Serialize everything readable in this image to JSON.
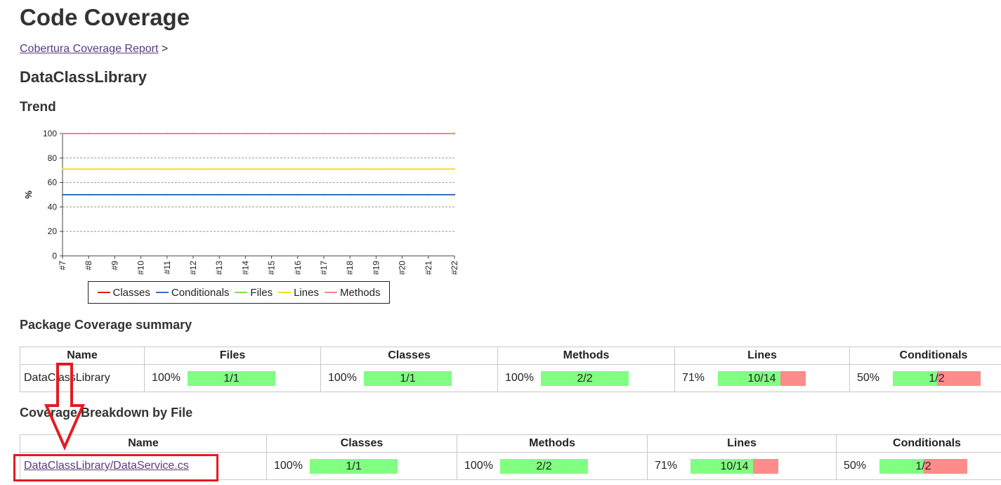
{
  "page": {
    "title": "Code Coverage",
    "breadcrumb_link": "Cobertura Coverage Report",
    "breadcrumb_sep": ">",
    "package_name": "DataClassLibrary",
    "trend_heading": "Trend",
    "package_summary_heading": "Package Coverage summary",
    "breakdown_heading": "Coverage Breakdown by File"
  },
  "chart_data": {
    "type": "line",
    "title": "",
    "xlabel": "",
    "ylabel": "%",
    "ylim": [
      0,
      100
    ],
    "yticks": [
      "0",
      "20",
      "40",
      "60",
      "80",
      "100"
    ],
    "x": [
      "#7",
      "#8",
      "#9",
      "#10",
      "#11",
      "#12",
      "#13",
      "#14",
      "#15",
      "#16",
      "#17",
      "#18",
      "#19",
      "#20",
      "#21",
      "#22"
    ],
    "grid": true,
    "legend_position": "bottom",
    "series": [
      {
        "name": "Classes",
        "color": "#e31b1b",
        "values": [
          100,
          100,
          100,
          100,
          100,
          100,
          100,
          100,
          100,
          100,
          100,
          100,
          100,
          100,
          100,
          100
        ]
      },
      {
        "name": "Conditionals",
        "color": "#3b6fbf",
        "values": [
          50,
          50,
          50,
          50,
          50,
          50,
          50,
          50,
          50,
          50,
          50,
          50,
          50,
          50,
          50,
          50
        ]
      },
      {
        "name": "Files",
        "color": "#7fe05a",
        "values": [
          100,
          100,
          100,
          100,
          100,
          100,
          100,
          100,
          100,
          100,
          100,
          100,
          100,
          100,
          100,
          100
        ]
      },
      {
        "name": "Lines",
        "color": "#f2df2a",
        "values": [
          71,
          71,
          71,
          71,
          71,
          71,
          71,
          71,
          71,
          71,
          71,
          71,
          71,
          71,
          71,
          71
        ]
      },
      {
        "name": "Methods",
        "color": "#f08a80",
        "values": [
          100,
          100,
          100,
          100,
          100,
          100,
          100,
          100,
          100,
          100,
          100,
          100,
          100,
          100,
          100,
          100
        ]
      }
    ]
  },
  "package_table": {
    "headers": [
      "Name",
      "Files",
      "Classes",
      "Methods",
      "Lines",
      "Conditionals"
    ],
    "row": {
      "name": "DataClassLibrary",
      "files": {
        "pct": "100%",
        "label": "1/1",
        "fraction": 1.0
      },
      "classes": {
        "pct": "100%",
        "label": "1/1",
        "fraction": 1.0
      },
      "methods": {
        "pct": "100%",
        "label": "2/2",
        "fraction": 1.0
      },
      "lines": {
        "pct": "71%",
        "label": "10/14",
        "fraction": 0.71
      },
      "conditionals": {
        "pct": "50%",
        "label": "1/2",
        "fraction": 0.5
      }
    }
  },
  "file_table": {
    "headers": [
      "Name",
      "Classes",
      "Methods",
      "Lines",
      "Conditionals"
    ],
    "row": {
      "name": "DataClassLibrary/DataService.cs",
      "classes": {
        "pct": "100%",
        "label": "1/1",
        "fraction": 1.0
      },
      "methods": {
        "pct": "100%",
        "label": "2/2",
        "fraction": 1.0
      },
      "lines": {
        "pct": "71%",
        "label": "10/14",
        "fraction": 0.71
      },
      "conditionals": {
        "pct": "50%",
        "label": "1/2",
        "fraction": 0.5
      }
    }
  },
  "annotation": {
    "arrow_color": "#e31b23",
    "box_color": "#e31b23"
  }
}
